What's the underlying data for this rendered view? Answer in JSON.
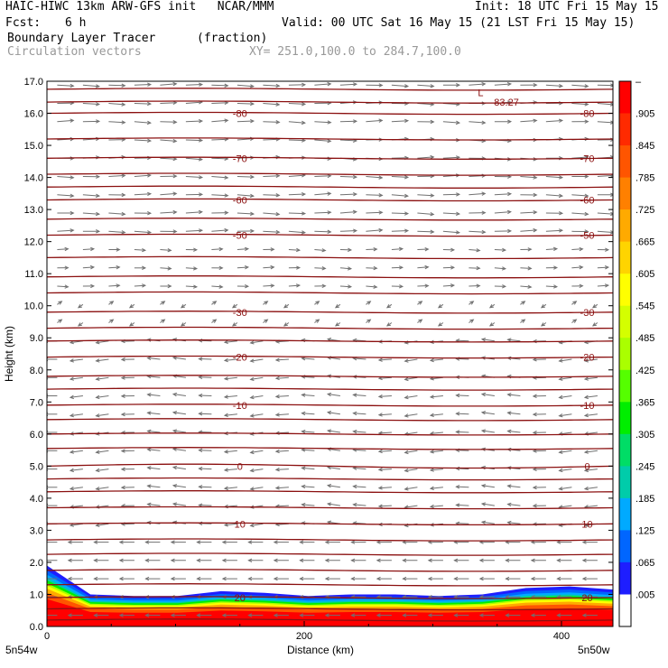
{
  "header": {
    "model_line": "HAIC-HIWC 13km ARW-GFS init   NCAR/MMM",
    "init_line": "Init: 18 UTC Fri 15 May 15",
    "fcst_label": "Fcst:",
    "fcst_value": "6 h",
    "valid_line": "Valid: 00 UTC Sat 16 May 15 (21 LST Fri 15 May 15)",
    "field_name": "Boundary Layer Tracer",
    "field_units": "(fraction)",
    "vector_label": "Circulation vectors",
    "xy_range": "XY= 251.0,100.0 to 284.7,100.0"
  },
  "chart_data": {
    "type": "heatmap",
    "title": "Boundary Layer Tracer",
    "ylabel": "Height (km)",
    "xlabel": "Distance (km)",
    "xlim": [
      0,
      440
    ],
    "ylim": [
      0,
      17
    ],
    "y_ticks": [
      "0.0",
      "1.0",
      "2.0",
      "3.0",
      "4.0",
      "5.0",
      "6.0",
      "7.0",
      "8.0",
      "9.0",
      "10.0",
      "11.0",
      "12.0",
      "13.0",
      "14.0",
      "15.0",
      "16.0",
      "17.0"
    ],
    "x_ticks": [
      {
        "value": 0,
        "label": "0"
      },
      {
        "value": 200,
        "label": "200"
      },
      {
        "value": 400,
        "label": "400"
      }
    ],
    "x_endpoints": {
      "left": "5n54w",
      "right": "5n50w"
    },
    "colorbar": {
      "labels": [
        "–",
        ".905",
        ".845",
        ".785",
        ".725",
        ".665",
        ".605",
        ".545",
        ".485",
        ".425",
        ".365",
        ".305",
        ".245",
        ".185",
        ".125",
        ".065",
        ".005"
      ],
      "colors": [
        "#ff0000",
        "#ff2a00",
        "#ff5500",
        "#ff8000",
        "#ffaa00",
        "#ffd400",
        "#ffff00",
        "#d4ff00",
        "#aaff00",
        "#55ff00",
        "#00ee00",
        "#00dd66",
        "#00ccaa",
        "#00aaff",
        "#0066ff",
        "#1e1eff",
        "#ffffff"
      ]
    },
    "temperature_contours": [
      {
        "value": 20,
        "label": "20",
        "height_km": 0.9
      },
      {
        "value": 10,
        "label": "10",
        "height_km": 3.2
      },
      {
        "value": 0,
        "label": "0",
        "height_km": 5.0
      },
      {
        "value": -10,
        "label": "-10",
        "height_km": 6.9
      },
      {
        "value": -20,
        "label": "-20",
        "height_km": 8.4
      },
      {
        "value": -30,
        "label": "-30",
        "height_km": 9.8
      },
      {
        "value": -50,
        "label": "-50",
        "height_km": 12.2
      },
      {
        "value": -60,
        "label": "-60",
        "height_km": 13.3
      },
      {
        "value": -70,
        "label": "-70",
        "height_km": 14.6
      },
      {
        "value": -80,
        "label": "-80",
        "height_km": 16.0
      }
    ],
    "extra_contour_heights_km": [
      0.2,
      0.55,
      1.3,
      1.75,
      2.25,
      2.7,
      3.7,
      4.2,
      4.6,
      5.55,
      6.0,
      6.45,
      7.4,
      7.8,
      8.9,
      9.3,
      10.4,
      10.9,
      11.5,
      12.7,
      13.7,
      14.1,
      15.2,
      16.35,
      16.75
    ],
    "annotations": [
      {
        "text": "L",
        "x_km": 335,
        "height_km": 16.65
      },
      {
        "text": "-83.27",
        "x_km": 345,
        "height_km": 16.35
      }
    ],
    "tracer_top_km": [
      1.9,
      1.0,
      0.95,
      0.95,
      1.1,
      1.05,
      0.95,
      1.0,
      1.0,
      0.95,
      1.0,
      1.2,
      1.25,
      1.15
    ]
  }
}
